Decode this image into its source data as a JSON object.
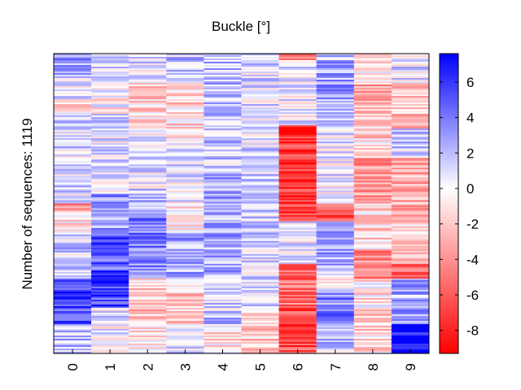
{
  "chart_data": {
    "type": "heatmap",
    "title": "Buckle [°]",
    "ylabel": "Number of sequences: 1119",
    "xlabel": "",
    "columns": [
      "0",
      "1",
      "2",
      "3",
      "4",
      "5",
      "6",
      "7",
      "8",
      "9"
    ],
    "row_count": 1119,
    "colorbar": {
      "range": [
        -9.3,
        7.6
      ],
      "ticks": [
        "6",
        "4",
        "2",
        "0",
        "-2",
        "-4",
        "-6",
        "-8"
      ],
      "tick_values": [
        6,
        4,
        2,
        0,
        -2,
        -4,
        -6,
        -8
      ],
      "colormap": [
        "#ff0000",
        "#ffffff",
        "#0000ff"
      ]
    },
    "column_profiles": [
      {
        "label": "0",
        "segments": [
          [
            0,
            0.08,
            2.5
          ],
          [
            0.08,
            0.15,
            0.5
          ],
          [
            0.15,
            0.2,
            -1.5
          ],
          [
            0.2,
            0.5,
            1.2
          ],
          [
            0.5,
            0.52,
            -5.0
          ],
          [
            0.52,
            0.6,
            -1.0
          ],
          [
            0.6,
            0.75,
            1.5
          ],
          [
            0.75,
            0.9,
            5.5
          ],
          [
            0.9,
            1.0,
            1.5
          ]
        ]
      },
      {
        "label": "1",
        "segments": [
          [
            0,
            0.1,
            1.5
          ],
          [
            0.1,
            0.2,
            -0.5
          ],
          [
            0.2,
            0.47,
            0.8
          ],
          [
            0.47,
            0.52,
            3.5
          ],
          [
            0.52,
            0.6,
            2.5
          ],
          [
            0.6,
            0.75,
            5.0
          ],
          [
            0.75,
            0.85,
            5.5
          ],
          [
            0.85,
            1.0,
            0.5
          ]
        ]
      },
      {
        "label": "2",
        "segments": [
          [
            0,
            0.1,
            1.0
          ],
          [
            0.1,
            0.25,
            -1.5
          ],
          [
            0.25,
            0.45,
            0.5
          ],
          [
            0.45,
            0.55,
            2.0
          ],
          [
            0.55,
            0.75,
            4.0
          ],
          [
            0.75,
            0.9,
            -2.0
          ],
          [
            0.9,
            1.0,
            -1.0
          ]
        ]
      },
      {
        "label": "3",
        "segments": [
          [
            0,
            0.1,
            1.5
          ],
          [
            0.1,
            0.3,
            -1.5
          ],
          [
            0.3,
            0.5,
            0.5
          ],
          [
            0.5,
            0.6,
            -1.0
          ],
          [
            0.6,
            0.75,
            2.5
          ],
          [
            0.75,
            0.9,
            -1.5
          ],
          [
            0.9,
            1.0,
            0.8
          ]
        ]
      },
      {
        "label": "4",
        "segments": [
          [
            0,
            0.3,
            2.0
          ],
          [
            0.3,
            0.4,
            1.5
          ],
          [
            0.4,
            0.75,
            2.5
          ],
          [
            0.75,
            0.9,
            1.5
          ],
          [
            0.9,
            1.0,
            -1.0
          ]
        ]
      },
      {
        "label": "5",
        "segments": [
          [
            0,
            0.3,
            0.8
          ],
          [
            0.3,
            0.4,
            1.2
          ],
          [
            0.4,
            0.65,
            1.5
          ],
          [
            0.65,
            0.85,
            1.0
          ],
          [
            0.85,
            1.0,
            -2.0
          ]
        ]
      },
      {
        "label": "6",
        "segments": [
          [
            0,
            0.02,
            -6.0
          ],
          [
            0.02,
            0.24,
            0.3
          ],
          [
            0.24,
            0.56,
            -7.0
          ],
          [
            0.56,
            0.7,
            0.5
          ],
          [
            0.7,
            0.85,
            -5.0
          ],
          [
            0.85,
            1.0,
            -6.5
          ]
        ]
      },
      {
        "label": "7",
        "segments": [
          [
            0,
            0.25,
            2.5
          ],
          [
            0.25,
            0.5,
            0.5
          ],
          [
            0.5,
            0.56,
            -6.0
          ],
          [
            0.56,
            0.72,
            2.5
          ],
          [
            0.72,
            0.8,
            0.3
          ],
          [
            0.8,
            0.9,
            3.5
          ],
          [
            0.9,
            1.0,
            1.8
          ]
        ]
      },
      {
        "label": "8",
        "segments": [
          [
            0,
            0.1,
            -1.0
          ],
          [
            0.1,
            0.2,
            -3.0
          ],
          [
            0.2,
            0.35,
            -1.5
          ],
          [
            0.35,
            0.5,
            -3.5
          ],
          [
            0.5,
            0.65,
            -1.5
          ],
          [
            0.65,
            0.75,
            -4.5
          ],
          [
            0.75,
            0.85,
            -1.0
          ],
          [
            0.85,
            1.0,
            -1.5
          ]
        ]
      },
      {
        "label": "9",
        "segments": [
          [
            0,
            0.1,
            1.0
          ],
          [
            0.1,
            0.25,
            -2.5
          ],
          [
            0.25,
            0.35,
            1.5
          ],
          [
            0.35,
            0.55,
            -3.0
          ],
          [
            0.55,
            0.7,
            -1.5
          ],
          [
            0.7,
            0.75,
            -6.0
          ],
          [
            0.75,
            0.9,
            2.5
          ],
          [
            0.9,
            1.0,
            7.5
          ]
        ]
      }
    ]
  }
}
